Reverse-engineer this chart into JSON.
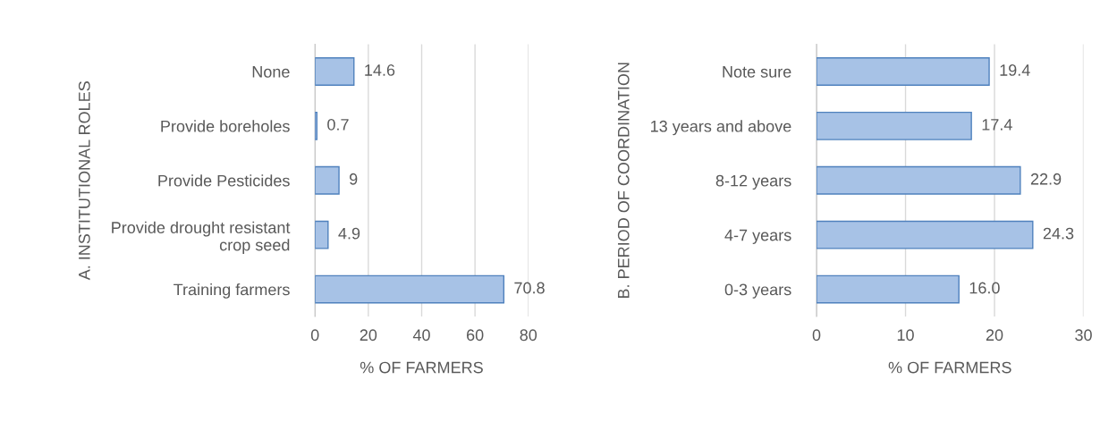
{
  "chart_data": [
    {
      "type": "bar",
      "orientation": "horizontal",
      "ylabel": "A. INSTITUTIONAL ROLES",
      "xlabel": "% OF FARMERS",
      "categories": [
        "None",
        "Provide boreholes",
        "Provide Pesticides",
        "Provide drought resistant\ncrop seed",
        "Training farmers"
      ],
      "values": [
        14.6,
        0.7,
        9,
        4.9,
        70.8
      ],
      "value_labels": [
        "14.6",
        "0.7",
        "9",
        "4.9",
        "70.8"
      ],
      "color": "#a7c2e6",
      "xlim": [
        0,
        80
      ],
      "xticks": [
        0,
        20,
        40,
        60,
        80
      ],
      "grid": "x",
      "legend": false
    },
    {
      "type": "bar",
      "orientation": "horizontal",
      "ylabel": "B. PERIOD OF COORDINATION",
      "xlabel": "% OF FARMERS",
      "categories": [
        "Note sure",
        "13 years and above",
        "8-12 years",
        "4-7 years",
        "0-3 years"
      ],
      "values": [
        19.4,
        17.4,
        22.9,
        24.3,
        16.0
      ],
      "value_labels": [
        "19.4",
        "17.4",
        "22.9",
        "24.3",
        "16.0"
      ],
      "color": "#a7c2e6",
      "xlim": [
        0,
        30
      ],
      "xticks": [
        0,
        10,
        20,
        30
      ],
      "grid": "x",
      "legend": false
    }
  ]
}
